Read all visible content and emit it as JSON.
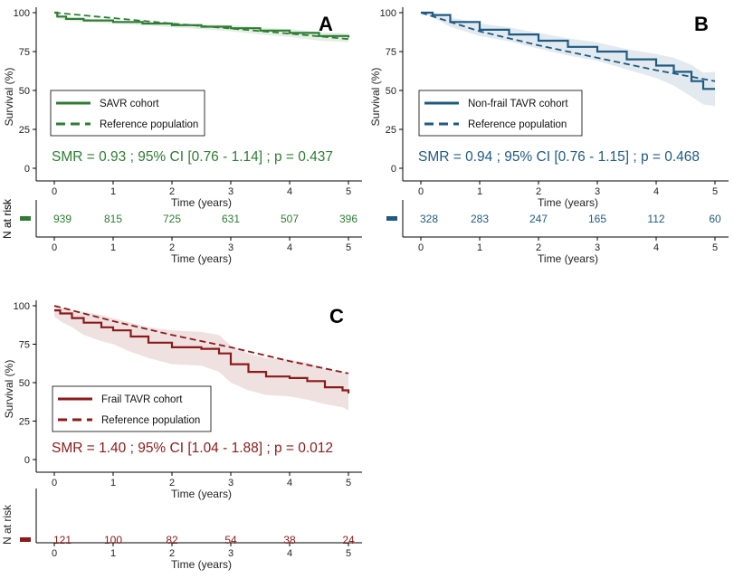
{
  "colors": {
    "A": "#2e7d32",
    "B": "#1f5a82",
    "C": "#8b1a1a",
    "axis": "#000000"
  },
  "chart_data": [
    {
      "panel_id": "A",
      "type": "line",
      "panel_label": "A",
      "xlabel": "Time (years)",
      "ylabel": "Survival (%)",
      "xlim": [
        0,
        5
      ],
      "ylim": [
        0,
        100
      ],
      "x_ticks": [
        "0",
        "1",
        "2",
        "3",
        "4",
        "5"
      ],
      "y_ticks": [
        "0",
        "25",
        "50",
        "75",
        "100"
      ],
      "legend_location": "center-left",
      "series": [
        {
          "name": "SAVR cohort",
          "style": "solid",
          "x": [
            0,
            0.05,
            0.2,
            0.5,
            1.0,
            1.5,
            2.0,
            2.5,
            3.0,
            3.5,
            4.0,
            4.5,
            5.0
          ],
          "y": [
            100,
            97.5,
            96,
            95,
            94,
            93,
            92,
            91,
            90,
            88.5,
            87,
            85,
            84
          ],
          "ci_lower": [
            100,
            96.5,
            95,
            94,
            93,
            92,
            90.5,
            89.5,
            88,
            86,
            84.5,
            82,
            81
          ],
          "ci_upper": [
            100,
            98.5,
            97,
            96,
            95,
            94,
            93.5,
            92.5,
            92,
            90.5,
            89.5,
            87.5,
            86.5
          ]
        },
        {
          "name": "Reference population",
          "style": "dashed",
          "x": [
            0,
            1,
            2,
            3,
            4,
            5
          ],
          "y": [
            100,
            96.5,
            93,
            89.8,
            86.5,
            83
          ]
        }
      ],
      "smr_text": "SMR = 0.93 ; 95% CI [0.76 - 1.14] ; p = 0.437",
      "risk_label": "N at risk",
      "risk_values": [
        "939",
        "815",
        "725",
        "631",
        "507",
        "396"
      ]
    },
    {
      "panel_id": "B",
      "type": "line",
      "panel_label": "B",
      "xlabel": "Time (years)",
      "ylabel": "Survival (%)",
      "xlim": [
        0,
        5
      ],
      "ylim": [
        0,
        100
      ],
      "x_ticks": [
        "0",
        "1",
        "2",
        "3",
        "4",
        "5"
      ],
      "y_ticks": [
        "0",
        "25",
        "50",
        "75",
        "100"
      ],
      "legend_location": "center-right",
      "series": [
        {
          "name": "Non-frail TAVR cohort",
          "style": "solid",
          "x": [
            0,
            0.2,
            0.5,
            1.0,
            1.5,
            2.0,
            2.5,
            3.0,
            3.5,
            4.0,
            4.3,
            4.6,
            4.8,
            5.0
          ],
          "y": [
            100,
            98.5,
            94,
            89,
            86,
            82,
            78,
            75,
            70,
            66,
            62,
            56,
            51,
            51
          ],
          "ci_lower": [
            100,
            97,
            91,
            85,
            81.5,
            77,
            72.5,
            69,
            63.5,
            58,
            53,
            46,
            41,
            40
          ],
          "ci_upper": [
            100,
            100,
            97,
            93,
            90.5,
            87,
            83.5,
            81,
            76.5,
            73.5,
            71,
            66.5,
            61.5,
            62
          ]
        },
        {
          "name": "Reference population",
          "style": "dashed",
          "x": [
            0,
            1,
            2,
            3,
            4,
            5
          ],
          "y": [
            100,
            88,
            79,
            71,
            63,
            56
          ]
        }
      ],
      "smr_text": "SMR = 0.94 ; 95% CI [0.76 - 1.15] ; p = 0.468",
      "risk_label": "N at risk",
      "risk_values": [
        "328",
        "283",
        "247",
        "165",
        "112",
        "60"
      ]
    },
    {
      "panel_id": "C",
      "type": "line",
      "panel_label": "C",
      "xlabel": "Time (years)",
      "ylabel": "Survival (%)",
      "xlim": [
        0,
        5
      ],
      "ylim": [
        0,
        100
      ],
      "x_ticks": [
        "0",
        "1",
        "2",
        "3",
        "4",
        "5"
      ],
      "y_ticks": [
        "0",
        "25",
        "50",
        "75",
        "100"
      ],
      "legend_location": "center-left",
      "series": [
        {
          "name": "Frail TAVR cohort",
          "style": "solid",
          "x": [
            0,
            0.1,
            0.3,
            0.5,
            0.8,
            1.0,
            1.3,
            1.6,
            2.0,
            2.5,
            2.8,
            3.0,
            3.3,
            3.6,
            4.0,
            4.3,
            4.6,
            4.9,
            5.0
          ],
          "y": [
            97,
            95,
            92,
            89,
            86,
            84,
            80,
            76,
            73,
            72,
            69,
            62,
            57,
            54,
            53,
            51,
            47,
            45,
            43
          ],
          "ci_lower": [
            93,
            90,
            86,
            81,
            77,
            75,
            70,
            66,
            62,
            61,
            57,
            50,
            45,
            42,
            41,
            39,
            36,
            34,
            32
          ],
          "ci_upper": [
            100,
            99,
            97,
            96,
            94,
            92,
            89,
            86,
            84,
            83,
            81,
            74,
            69,
            66,
            65,
            63,
            59,
            57,
            55
          ]
        },
        {
          "name": "Reference population",
          "style": "dashed",
          "x": [
            0,
            1,
            2,
            3,
            4,
            5
          ],
          "y": [
            100,
            90,
            81,
            73,
            64,
            56
          ]
        }
      ],
      "smr_text": "SMR = 1.40 ; 95% CI [1.04 - 1.88] ; p = 0.012",
      "risk_label": "N at risk",
      "risk_values": [
        "121",
        "100",
        "82",
        "54",
        "38",
        "24"
      ]
    }
  ]
}
